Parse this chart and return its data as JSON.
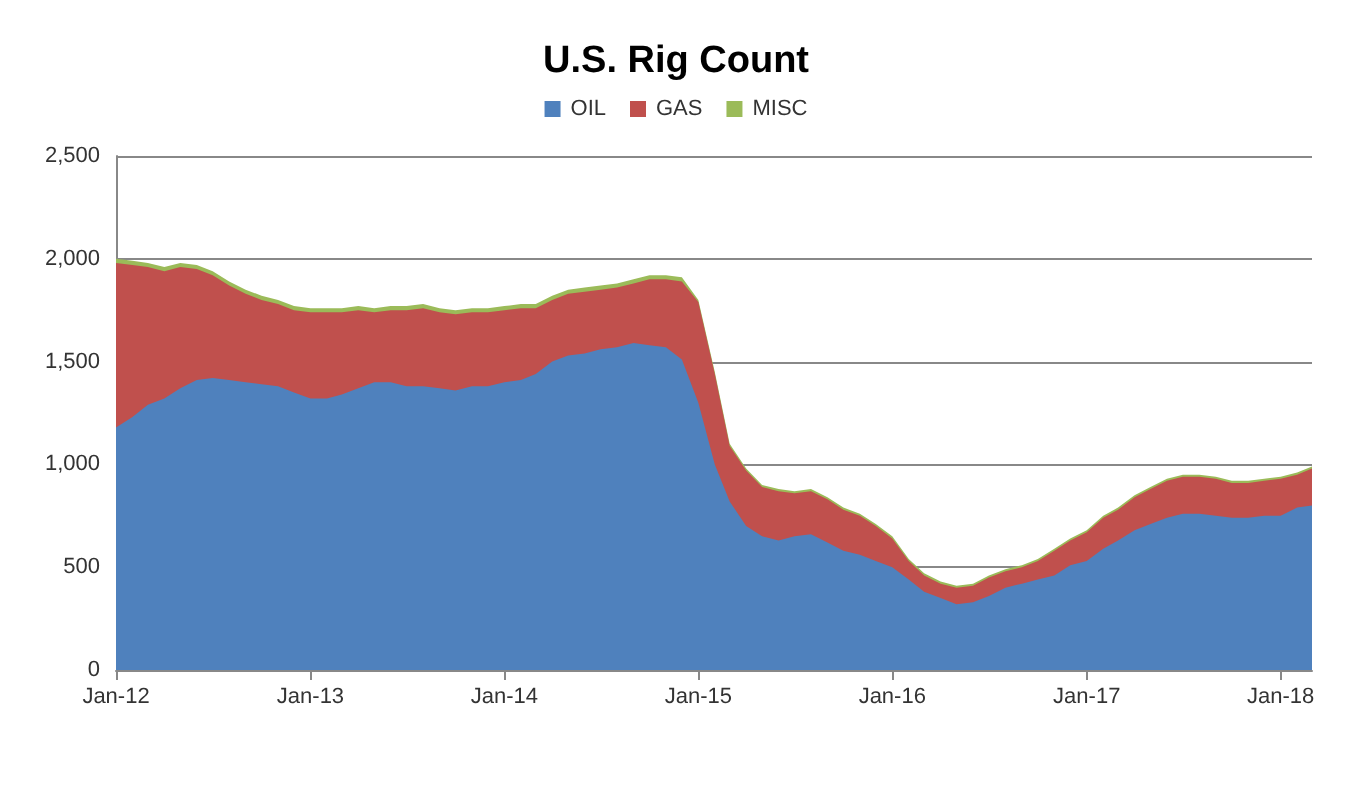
{
  "chart_data": {
    "type": "area",
    "title": "U.S. Rig Count",
    "stacked": true,
    "legend": "top",
    "grid": "y",
    "marker": "none",
    "x": [
      "2012-01",
      "2012-02",
      "2012-03",
      "2012-04",
      "2012-05",
      "2012-06",
      "2012-07",
      "2012-08",
      "2012-09",
      "2012-10",
      "2012-11",
      "2012-12",
      "2013-01",
      "2013-02",
      "2013-03",
      "2013-04",
      "2013-05",
      "2013-06",
      "2013-07",
      "2013-08",
      "2013-09",
      "2013-10",
      "2013-11",
      "2013-12",
      "2014-01",
      "2014-02",
      "2014-03",
      "2014-04",
      "2014-05",
      "2014-06",
      "2014-07",
      "2014-08",
      "2014-09",
      "2014-10",
      "2014-11",
      "2014-12",
      "2015-01",
      "2015-02",
      "2015-03",
      "2015-04",
      "2015-05",
      "2015-06",
      "2015-07",
      "2015-08",
      "2015-09",
      "2015-10",
      "2015-11",
      "2015-12",
      "2016-01",
      "2016-02",
      "2016-03",
      "2016-04",
      "2016-05",
      "2016-06",
      "2016-07",
      "2016-08",
      "2016-09",
      "2016-10",
      "2016-11",
      "2016-12",
      "2017-01",
      "2017-02",
      "2017-03",
      "2017-04",
      "2017-05",
      "2017-06",
      "2017-07",
      "2017-08",
      "2017-09",
      "2017-10",
      "2017-11",
      "2017-12",
      "2018-01",
      "2018-02",
      "2018-03"
    ],
    "xlim": [
      "2012-01",
      "2018-03"
    ],
    "xticks": [
      {
        "value": "2012-01",
        "label": "Jan-12"
      },
      {
        "value": "2013-01",
        "label": "Jan-13"
      },
      {
        "value": "2014-01",
        "label": "Jan-14"
      },
      {
        "value": "2015-01",
        "label": "Jan-15"
      },
      {
        "value": "2016-01",
        "label": "Jan-16"
      },
      {
        "value": "2017-01",
        "label": "Jan-17"
      },
      {
        "value": "2018-01",
        "label": "Jan-18"
      }
    ],
    "ylim": [
      0,
      2500
    ],
    "yticks": [
      {
        "value": 0,
        "label": "0"
      },
      {
        "value": 500,
        "label": "500"
      },
      {
        "value": 1000,
        "label": "1,000"
      },
      {
        "value": 1500,
        "label": "1,500"
      },
      {
        "value": 2000,
        "label": "2,000"
      },
      {
        "value": 2500,
        "label": "2,500"
      }
    ],
    "series": [
      {
        "name": "OIL",
        "color": "#4f81bd",
        "values": [
          1180,
          1230,
          1290,
          1320,
          1370,
          1410,
          1420,
          1410,
          1400,
          1390,
          1380,
          1350,
          1320,
          1320,
          1340,
          1370,
          1400,
          1400,
          1380,
          1380,
          1370,
          1360,
          1380,
          1380,
          1400,
          1410,
          1440,
          1500,
          1530,
          1540,
          1560,
          1570,
          1590,
          1580,
          1570,
          1510,
          1300,
          1000,
          820,
          700,
          650,
          630,
          650,
          660,
          620,
          580,
          560,
          530,
          500,
          440,
          380,
          350,
          320,
          330,
          360,
          400,
          420,
          440,
          460,
          510,
          530,
          590,
          630,
          680,
          710,
          740,
          760,
          760,
          750,
          740,
          740,
          750,
          750,
          790,
          800
        ]
      },
      {
        "name": "GAS",
        "color": "#c0504d",
        "values": [
          800,
          740,
          670,
          620,
          590,
          540,
          500,
          460,
          430,
          410,
          400,
          400,
          420,
          420,
          400,
          380,
          340,
          350,
          370,
          380,
          370,
          370,
          360,
          360,
          350,
          350,
          320,
          300,
          300,
          300,
          290,
          290,
          290,
          320,
          330,
          380,
          490,
          440,
          270,
          270,
          240,
          240,
          210,
          210,
          210,
          200,
          190,
          170,
          140,
          90,
          80,
          70,
          80,
          80,
          90,
          80,
          80,
          90,
          120,
          120,
          140,
          150,
          150,
          160,
          170,
          180,
          180,
          180,
          180,
          170,
          170,
          170,
          180,
          160,
          180
        ]
      },
      {
        "name": "MISC",
        "color": "#9bbb59",
        "values": [
          20,
          20,
          20,
          20,
          20,
          20,
          20,
          20,
          20,
          20,
          20,
          20,
          20,
          20,
          20,
          20,
          20,
          20,
          20,
          20,
          20,
          20,
          20,
          20,
          20,
          20,
          20,
          20,
          20,
          20,
          20,
          20,
          20,
          20,
          20,
          20,
          10,
          10,
          10,
          10,
          10,
          10,
          10,
          10,
          10,
          10,
          10,
          10,
          10,
          10,
          10,
          10,
          10,
          10,
          10,
          10,
          10,
          10,
          10,
          10,
          10,
          10,
          10,
          10,
          10,
          10,
          10,
          10,
          10,
          10,
          10,
          10,
          10,
          10,
          10
        ]
      }
    ]
  }
}
